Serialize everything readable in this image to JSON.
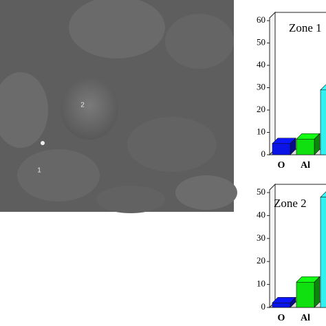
{
  "image_labels": [
    "2",
    "1"
  ],
  "chart_data": [
    {
      "type": "bar3d",
      "title": "Zone 1",
      "categories": [
        "O",
        "Al",
        null
      ],
      "series": [
        {
          "values": [
            5,
            7,
            29
          ],
          "colors": [
            "#0a14e6",
            "#10e010",
            "#30f0f0"
          ]
        }
      ],
      "ylim": [
        0,
        60
      ],
      "yticks": [
        0,
        10,
        20,
        30,
        40,
        50,
        60
      ]
    },
    {
      "type": "bar3d",
      "title": "Zone 2",
      "categories": [
        "O",
        "Al",
        null
      ],
      "series": [
        {
          "values": [
            2,
            11,
            48
          ],
          "colors": [
            "#0a14e6",
            "#10e010",
            "#30f0f0"
          ]
        }
      ],
      "ylim": [
        0,
        50
      ],
      "yticks": [
        0,
        10,
        20,
        30,
        40,
        50
      ]
    }
  ]
}
